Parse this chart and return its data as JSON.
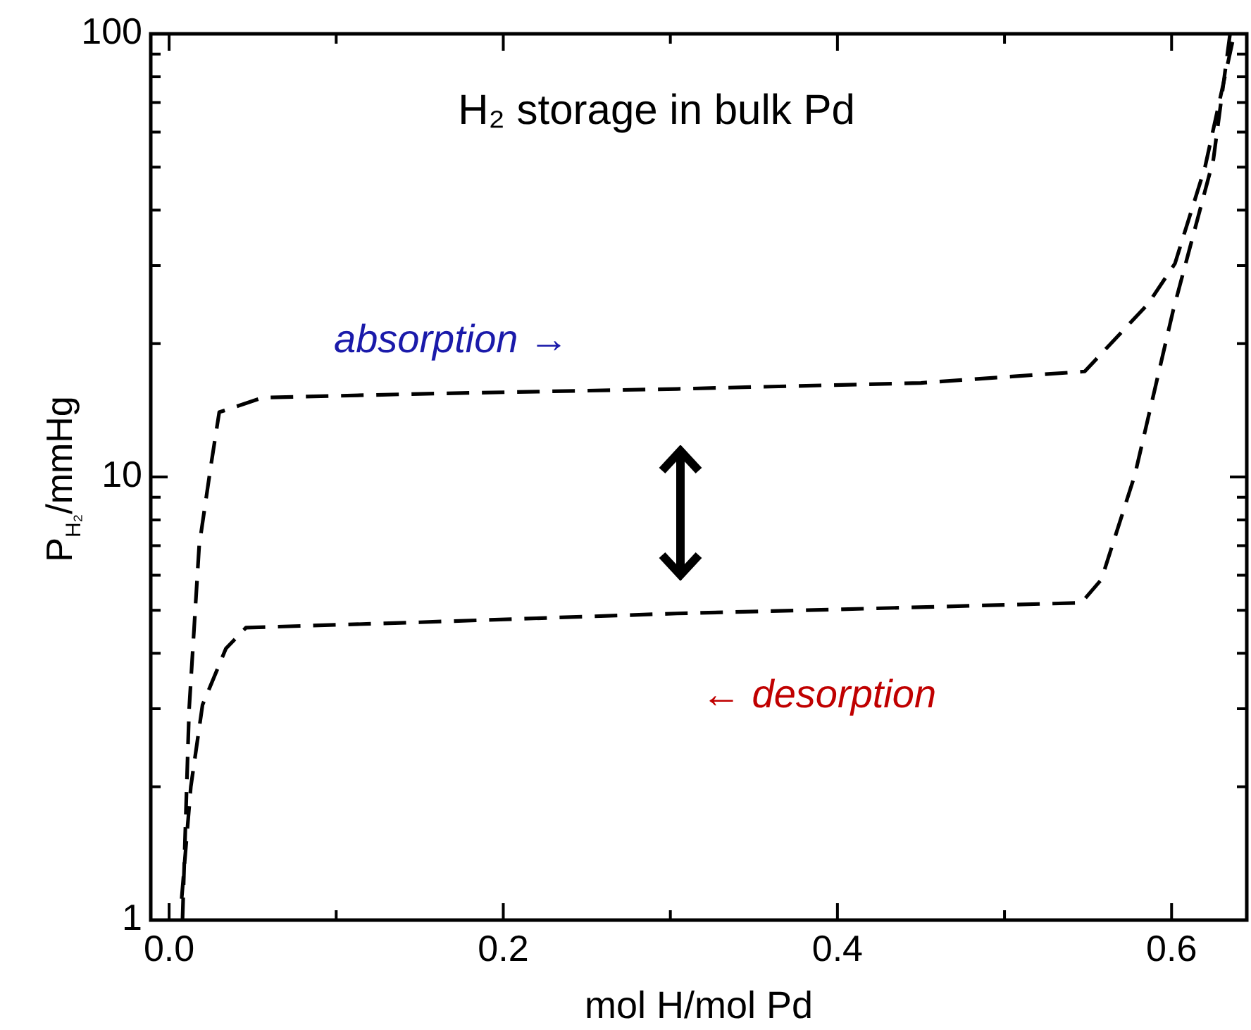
{
  "chart_data": {
    "type": "line",
    "title": "H₂ storage in bulk Pd",
    "xlabel": "mol H/mol Pd",
    "ylabel": "P$_{H₂}$/mmHg",
    "log": "y",
    "xlim": [
      -0.011,
      0.645
    ],
    "ylim": [
      1,
      100
    ],
    "xticks": [
      {
        "value": 0,
        "label": "0.0"
      },
      {
        "value": 0.1,
        "label": null
      },
      {
        "value": 0.2,
        "label": "0.2"
      },
      {
        "value": 0.3,
        "label": null
      },
      {
        "value": 0.4,
        "label": "0.4"
      },
      {
        "value": 0.5,
        "label": null
      },
      {
        "value": 0.6,
        "label": "0.6"
      }
    ],
    "yticks": [
      1,
      {
        "value": 2,
        "label": null
      },
      {
        "value": 3,
        "label": null
      },
      {
        "value": 4,
        "label": null
      },
      {
        "value": 5,
        "label": null
      },
      {
        "value": 6,
        "label": null
      },
      {
        "value": 7,
        "label": null
      },
      {
        "value": 8,
        "label": null
      },
      {
        "value": 9,
        "label": null
      },
      10,
      {
        "value": 20,
        "label": null
      },
      {
        "value": 30,
        "label": null
      },
      {
        "value": 40,
        "label": null
      },
      {
        "value": 50,
        "label": null
      },
      {
        "value": 60,
        "label": null
      },
      {
        "value": 70,
        "label": null
      },
      {
        "value": 80,
        "label": null
      },
      {
        "value": 90,
        "label": null
      },
      100
    ],
    "grid": false,
    "legend": false,
    "marker": "none",
    "line_style": "dashed",
    "series": [
      {
        "color": "#000000",
        "x": [
          0.008,
          0.012,
          0.018,
          0.025,
          0.03,
          0.056,
          0.15,
          0.304,
          0.45,
          0.548,
          0.586,
          0.602,
          0.62,
          0.637
        ],
        "values": [
          1,
          3,
          7,
          10.6,
          14,
          15.1,
          15.4,
          15.8,
          16.3,
          17.3,
          24.6,
          30.3,
          50,
          98
        ]
      },
      {
        "color": "#000000",
        "x": [
          0.635,
          0.625,
          0.601,
          0.578,
          0.558,
          0.546,
          0.396,
          0.304,
          0.15,
          0.046,
          0.034,
          0.02,
          0.013,
          0.007
        ],
        "values": [
          100,
          52,
          23.8,
          10.1,
          5.87,
          5.2,
          5.02,
          4.92,
          4.7,
          4.57,
          4.1,
          3.06,
          2,
          1.06
        ]
      }
    ],
    "annotations": [
      "absorption →",
      "← desorption"
    ]
  }
}
